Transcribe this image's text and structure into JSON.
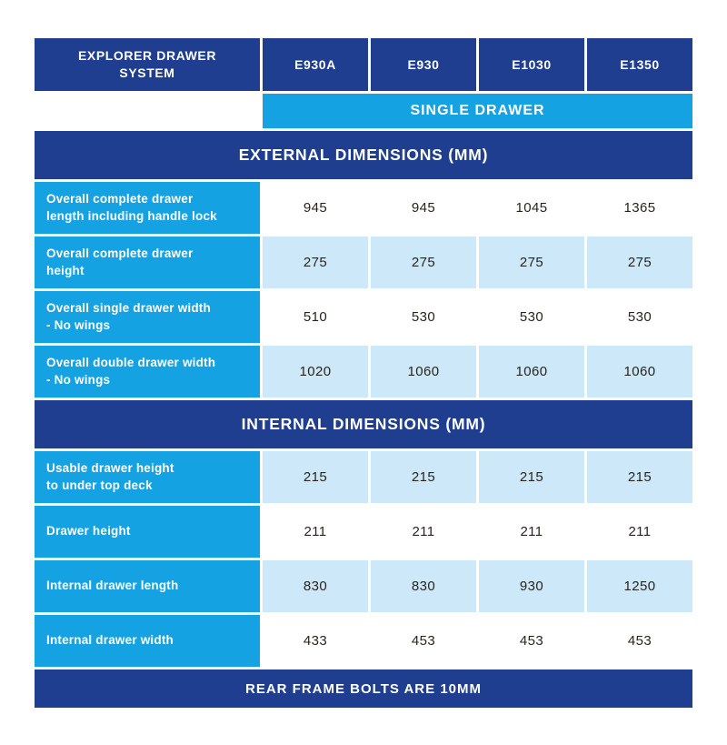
{
  "colors": {
    "dark_blue": "#1F3E8F",
    "cyan": "#14A2E3",
    "light_blue": "#CDE9F9",
    "value_text": "#29241F"
  },
  "table": {
    "header": {
      "title": "EXPLORER DRAWER\nSYSTEM",
      "columns": [
        "E930A",
        "E930",
        "E1030",
        "E1350"
      ]
    },
    "subheader": "SINGLE DRAWER",
    "sections": [
      {
        "title": "EXTERNAL DIMENSIONS (MM)",
        "rows": [
          {
            "label": "Overall complete drawer\nlength including handle lock",
            "values": [
              "945",
              "945",
              "1045",
              "1365"
            ]
          },
          {
            "label": "Overall complete drawer\nheight",
            "values": [
              "275",
              "275",
              "275",
              "275"
            ]
          },
          {
            "label": "Overall single drawer width\n- No wings",
            "values": [
              "510",
              "530",
              "530",
              "530"
            ]
          },
          {
            "label": "Overall double drawer width\n- No wings",
            "values": [
              "1020",
              "1060",
              "1060",
              "1060"
            ]
          }
        ]
      },
      {
        "title": "INTERNAL DIMENSIONS (MM)",
        "rows": [
          {
            "label": "Usable drawer height\nto under top deck",
            "values": [
              "215",
              "215",
              "215",
              "215"
            ]
          },
          {
            "label": "Drawer height",
            "values": [
              "211",
              "211",
              "211",
              "211"
            ]
          },
          {
            "label": "Internal drawer length",
            "values": [
              "830",
              "830",
              "930",
              "1250"
            ]
          },
          {
            "label": "Internal drawer width",
            "values": [
              "433",
              "453",
              "453",
              "453"
            ]
          }
        ]
      }
    ],
    "footer": "REAR FRAME BOLTS ARE 10MM"
  }
}
